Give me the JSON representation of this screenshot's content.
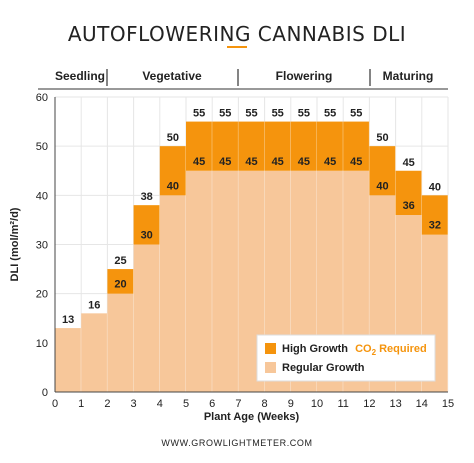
{
  "title": "AUTOFLOWERING CANNABIS DLI",
  "footer": "WWW.GROWLIGHTMETER.COM",
  "phases": [
    "Seedling",
    "Vegetative",
    "Flowering",
    "Maturing"
  ],
  "colors": {
    "regular": "#f7c79a",
    "high": "#f5940d",
    "accent": "#f5940d",
    "text": "#222222"
  },
  "legend": {
    "high_label": "High Growth",
    "co2_prefix": "CO",
    "co2_sub": "2",
    "co2_suffix": " Required",
    "regular_label": "Regular Growth"
  },
  "chart_data": {
    "type": "bar",
    "x_ticks": [
      0,
      1,
      2,
      3,
      4,
      5,
      6,
      7,
      8,
      9,
      10,
      11,
      12,
      13,
      14,
      15
    ],
    "x_label": "Plant Age (Weeks)",
    "y_label": "DLI (mol/m²/d)",
    "ylim": [
      0,
      60
    ],
    "y_ticks": [
      0,
      10,
      20,
      30,
      40,
      50,
      60
    ],
    "series": [
      {
        "name": "Regular Growth",
        "values": [
          13,
          16,
          20,
          30,
          40,
          45,
          45,
          45,
          45,
          45,
          45,
          45,
          40,
          36,
          32
        ]
      },
      {
        "name": "High Growth",
        "values": [
          13,
          16,
          25,
          38,
          50,
          55,
          55,
          55,
          55,
          55,
          55,
          55,
          50,
          45,
          40
        ]
      }
    ]
  }
}
